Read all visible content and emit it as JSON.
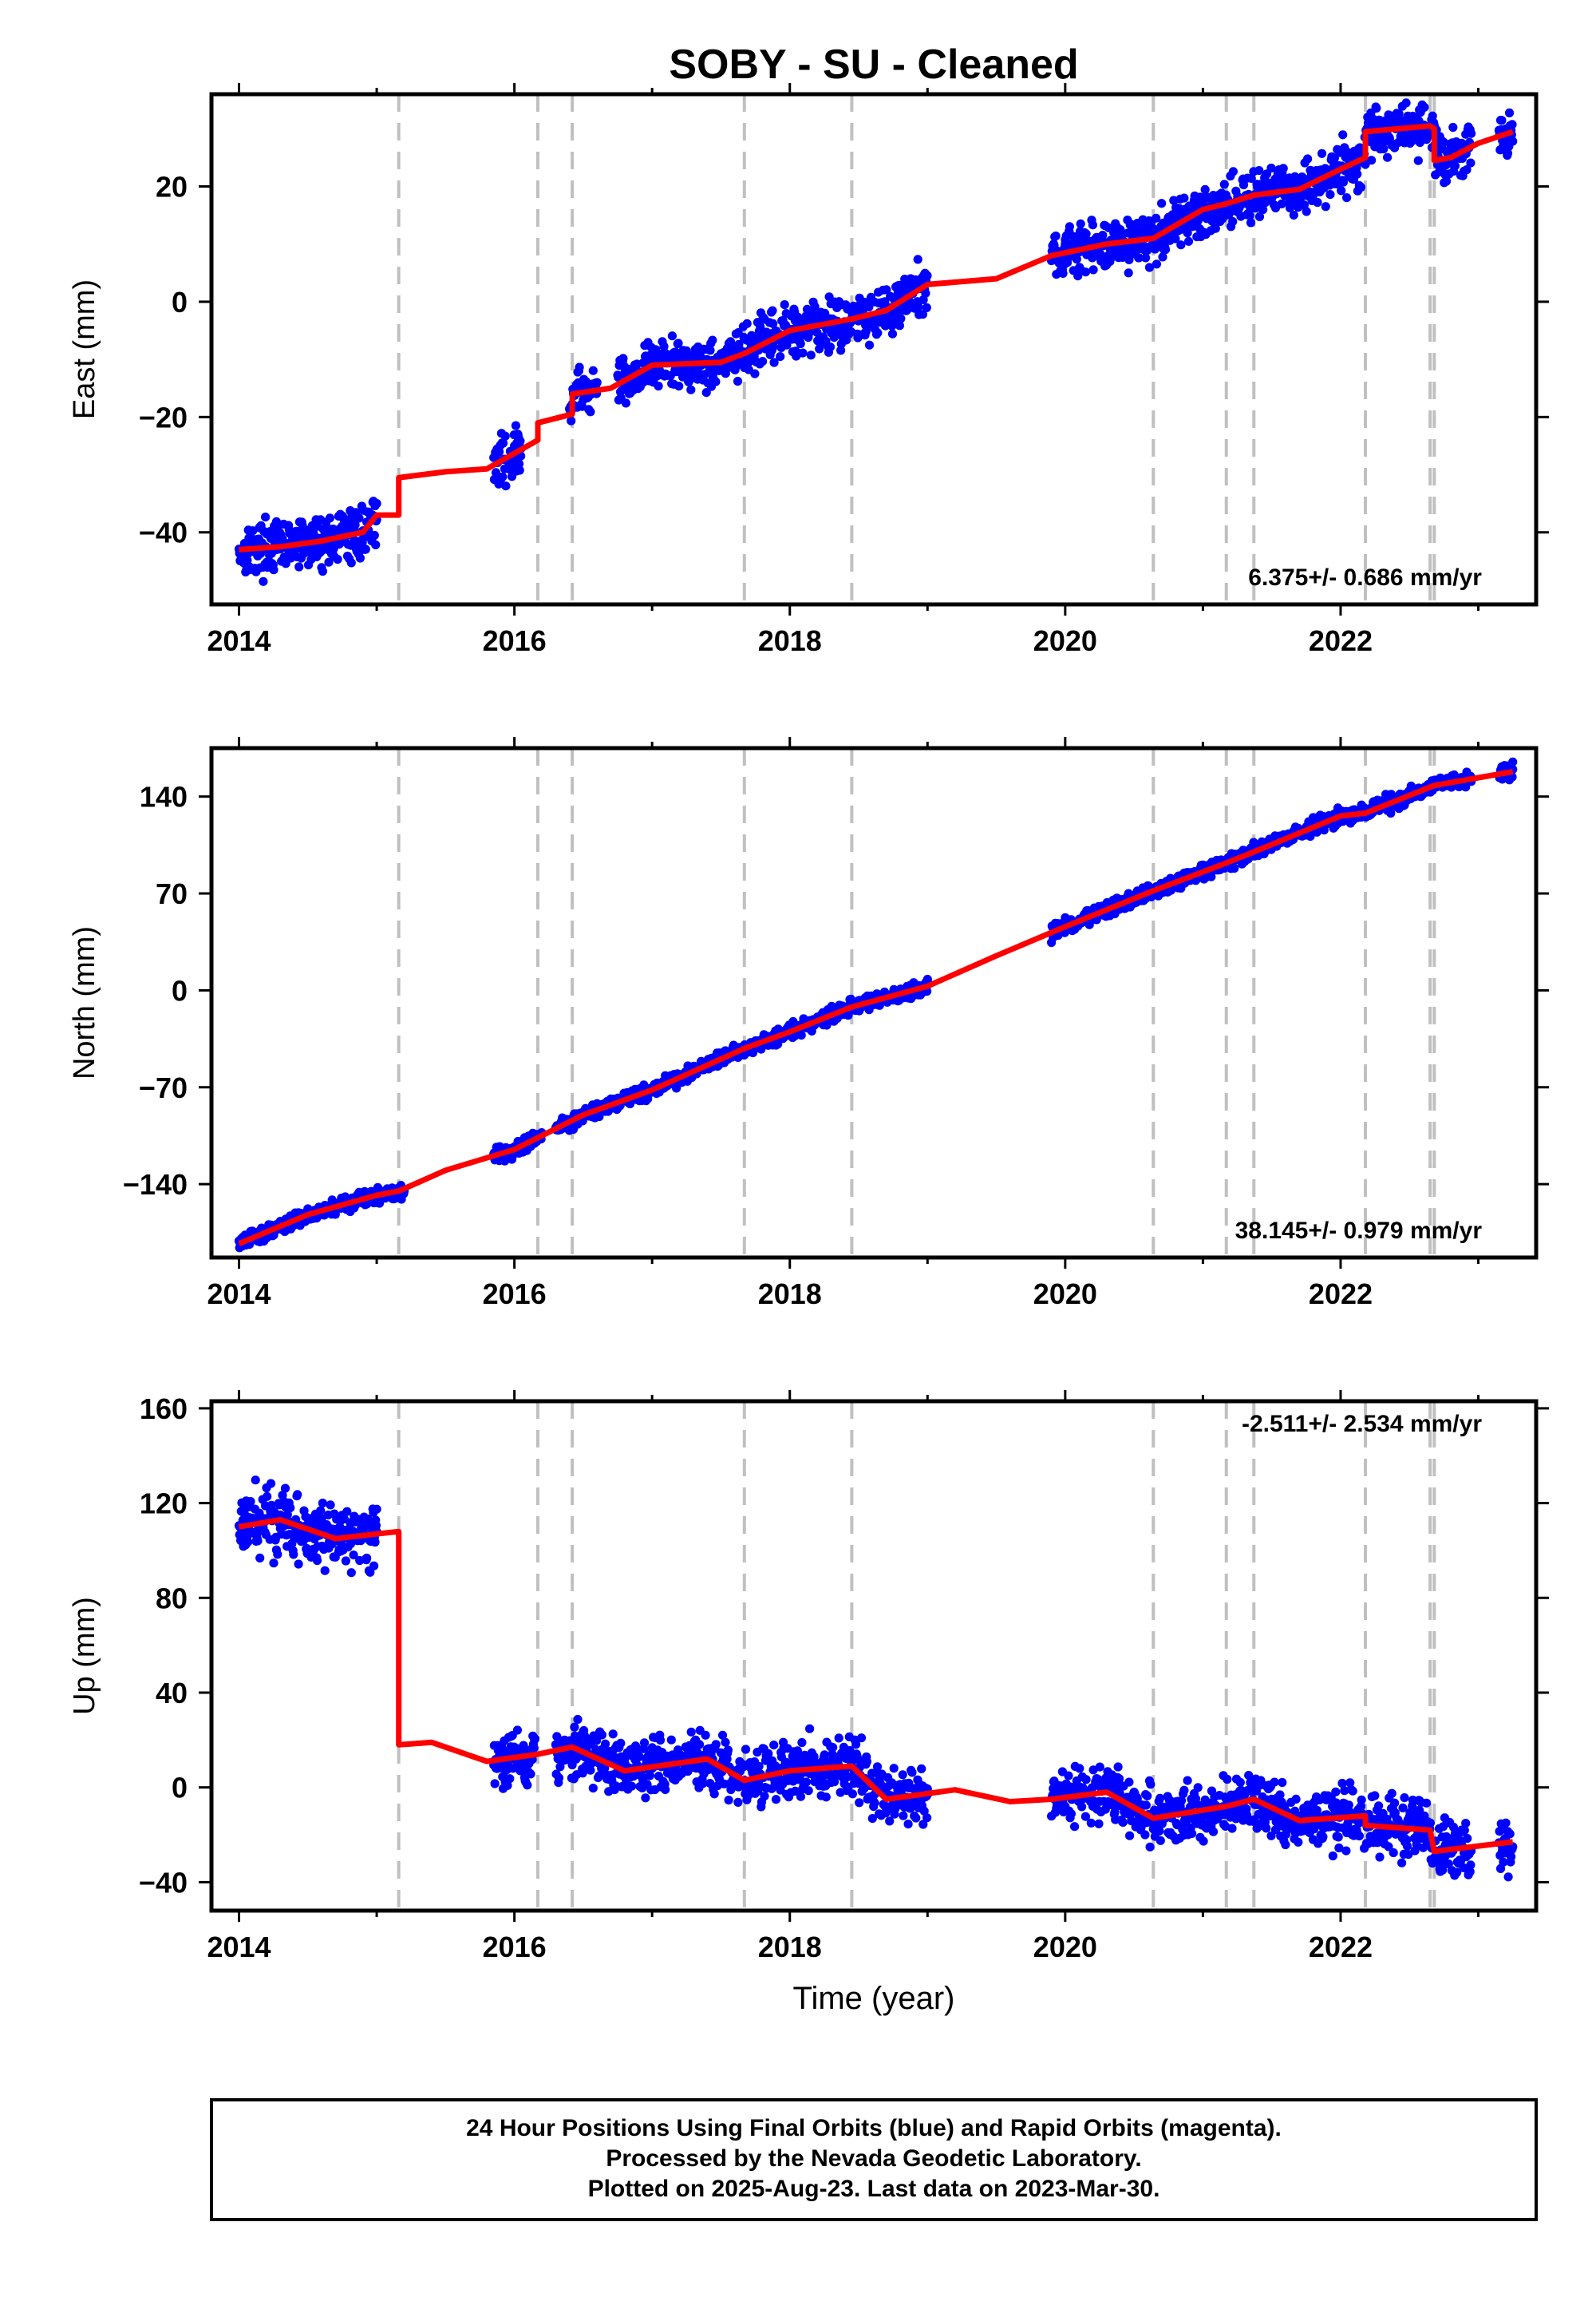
{
  "title": "SOBY  - SU - Cleaned",
  "colors": {
    "final_orbits": "#0000ff",
    "model": "#ff0000",
    "breaks": "#c0c0c0",
    "frame": "#000000"
  },
  "chart_data": [
    {
      "type": "scatter",
      "component": "east",
      "ylabel": "East (mm)",
      "xlabel": "",
      "xlim": [
        2013.8,
        2023.42
      ],
      "ylim": [
        -52.5,
        36
      ],
      "xticks": [
        "2014",
        "2016",
        "2018",
        "2020",
        "2022"
      ],
      "yticks": [
        "−40",
        "−20",
        "0",
        "20"
      ],
      "rate_text": "6.375+/- 0.686 mm/yr",
      "offset_epochs": [
        2015.16,
        2016.17,
        2016.42,
        2017.67,
        2018.45,
        2020.64,
        2021.17,
        2021.37,
        2022.18,
        2022.65,
        2022.68
      ],
      "data_segments": [
        [
          2014.0,
          2015.0
        ],
        [
          2015.85,
          2016.05
        ],
        [
          2016.4,
          2016.6
        ],
        [
          2016.75,
          2019.0
        ],
        [
          2019.9,
          2022.95
        ],
        [
          2023.15,
          2023.25
        ]
      ],
      "model_curve": [
        [
          2014.0,
          -43
        ],
        [
          2014.3,
          -42.5
        ],
        [
          2014.6,
          -41.5
        ],
        [
          2014.9,
          -40
        ],
        [
          2015.0,
          -37
        ],
        [
          2015.16,
          -37
        ],
        [
          2015.16,
          -30.5
        ],
        [
          2015.5,
          -29.5
        ],
        [
          2015.8,
          -29
        ],
        [
          2016.17,
          -24
        ],
        [
          2016.17,
          -21
        ],
        [
          2016.42,
          -19.5
        ],
        [
          2016.42,
          -16
        ],
        [
          2016.7,
          -15
        ],
        [
          2017.0,
          -11
        ],
        [
          2017.5,
          -10.5
        ],
        [
          2017.67,
          -9
        ],
        [
          2018.0,
          -5
        ],
        [
          2018.45,
          -3
        ],
        [
          2018.7,
          -1.5
        ],
        [
          2019.0,
          3
        ],
        [
          2019.5,
          4
        ],
        [
          2019.9,
          8
        ],
        [
          2020.3,
          10
        ],
        [
          2020.64,
          11
        ],
        [
          2021.0,
          16
        ],
        [
          2021.17,
          17
        ],
        [
          2021.37,
          18.5
        ],
        [
          2021.7,
          19.5
        ],
        [
          2022.0,
          23
        ],
        [
          2022.18,
          25
        ],
        [
          2022.18,
          29.5
        ],
        [
          2022.65,
          30.5
        ],
        [
          2022.68,
          30
        ],
        [
          2022.68,
          24.5
        ],
        [
          2022.8,
          25
        ],
        [
          2023.0,
          27.5
        ],
        [
          2023.25,
          29.5
        ]
      ],
      "samples": [
        [
          2014.05,
          -43
        ],
        [
          2014.2,
          -40
        ],
        [
          2014.5,
          -42
        ],
        [
          2014.8,
          -38
        ],
        [
          2015.0,
          -35
        ],
        [
          2016.0,
          -25
        ],
        [
          2016.5,
          -17
        ],
        [
          2017.0,
          -12
        ],
        [
          2017.5,
          -9
        ],
        [
          2018.0,
          -5
        ],
        [
          2018.5,
          -3
        ],
        [
          2018.9,
          2
        ],
        [
          2020.0,
          10
        ],
        [
          2020.5,
          11
        ],
        [
          2021.0,
          17
        ],
        [
          2021.5,
          18
        ],
        [
          2022.0,
          23
        ],
        [
          2022.4,
          30
        ],
        [
          2022.8,
          25
        ],
        [
          2023.2,
          30
        ]
      ]
    },
    {
      "type": "scatter",
      "component": "north",
      "ylabel": "North (mm)",
      "xlabel": "",
      "xlim": [
        2013.8,
        2023.42
      ],
      "ylim": [
        -193,
        175
      ],
      "xticks": [
        "2014",
        "2016",
        "2018",
        "2020",
        "2022"
      ],
      "yticks": [
        "−140",
        "−70",
        "0",
        "70",
        "140"
      ],
      "rate_text": "38.145+/- 0.979 mm/yr",
      "offset_epochs": [
        2015.16,
        2016.17,
        2016.42,
        2017.67,
        2018.45,
        2020.64,
        2021.17,
        2021.37,
        2022.18,
        2022.65,
        2022.68
      ],
      "data_segments": [
        [
          2014.0,
          2015.2
        ],
        [
          2015.85,
          2016.2
        ],
        [
          2016.3,
          2019.0
        ],
        [
          2019.9,
          2022.95
        ],
        [
          2023.15,
          2023.25
        ]
      ],
      "model_curve": [
        [
          2014.0,
          -183
        ],
        [
          2014.5,
          -162
        ],
        [
          2015.0,
          -148
        ],
        [
          2015.16,
          -145
        ],
        [
          2015.5,
          -130
        ],
        [
          2016.0,
          -115
        ],
        [
          2016.5,
          -90
        ],
        [
          2017.0,
          -72
        ],
        [
          2017.67,
          -42
        ],
        [
          2018.0,
          -30
        ],
        [
          2018.45,
          -12
        ],
        [
          2019.0,
          3
        ],
        [
          2019.5,
          25
        ],
        [
          2020.0,
          46
        ],
        [
          2020.64,
          72
        ],
        [
          2021.17,
          92
        ],
        [
          2021.37,
          100
        ],
        [
          2022.0,
          126
        ],
        [
          2022.18,
          128
        ],
        [
          2022.68,
          148
        ],
        [
          2023.25,
          158
        ]
      ],
      "samples": [
        [
          2014.05,
          -184
        ],
        [
          2014.5,
          -162
        ],
        [
          2015.0,
          -147
        ],
        [
          2016.0,
          -113
        ],
        [
          2016.5,
          -88
        ],
        [
          2017.0,
          -72
        ],
        [
          2017.5,
          -50
        ],
        [
          2018.0,
          -30
        ],
        [
          2018.5,
          -10
        ],
        [
          2019.0,
          8
        ],
        [
          2020.0,
          48
        ],
        [
          2020.6,
          72
        ],
        [
          2021.2,
          93
        ],
        [
          2021.8,
          118
        ],
        [
          2022.4,
          133
        ],
        [
          2022.9,
          148
        ],
        [
          2023.25,
          165
        ]
      ]
    },
    {
      "type": "scatter",
      "component": "up",
      "ylabel": "Up (mm)",
      "xlabel": "Time (year)",
      "xlim": [
        2013.8,
        2023.42
      ],
      "ylim": [
        -52,
        163
      ],
      "xticks": [
        "2014",
        "2016",
        "2018",
        "2020",
        "2022"
      ],
      "yticks": [
        "−40",
        "0",
        "40",
        "80",
        "120",
        "160"
      ],
      "rate_text": "-2.511+/- 2.534 mm/yr",
      "offset_epochs": [
        2015.16,
        2016.17,
        2016.42,
        2017.67,
        2018.45,
        2020.64,
        2021.17,
        2021.37,
        2022.18,
        2022.65,
        2022.68
      ],
      "data_segments": [
        [
          2014.0,
          2015.0
        ],
        [
          2015.85,
          2016.15
        ],
        [
          2016.3,
          2019.0
        ],
        [
          2019.9,
          2022.95
        ],
        [
          2023.15,
          2023.25
        ]
      ],
      "model_curve": [
        [
          2014.0,
          110
        ],
        [
          2014.3,
          113
        ],
        [
          2014.7,
          105
        ],
        [
          2015.0,
          107
        ],
        [
          2015.16,
          108
        ],
        [
          2015.16,
          18
        ],
        [
          2015.4,
          19
        ],
        [
          2015.8,
          11
        ],
        [
          2016.17,
          14
        ],
        [
          2016.42,
          17
        ],
        [
          2016.8,
          7
        ],
        [
          2017.4,
          12
        ],
        [
          2017.67,
          3
        ],
        [
          2018.0,
          7
        ],
        [
          2018.45,
          9
        ],
        [
          2018.7,
          -5
        ],
        [
          2019.2,
          -1
        ],
        [
          2019.6,
          -6
        ],
        [
          2019.9,
          -5
        ],
        [
          2020.3,
          -2
        ],
        [
          2020.64,
          -13
        ],
        [
          2021.17,
          -8
        ],
        [
          2021.37,
          -5
        ],
        [
          2021.7,
          -14
        ],
        [
          2022.18,
          -12
        ],
        [
          2022.18,
          -16
        ],
        [
          2022.65,
          -18
        ],
        [
          2022.68,
          -27
        ],
        [
          2023.25,
          -23
        ]
      ],
      "samples": [
        [
          2014.05,
          112
        ],
        [
          2014.3,
          115
        ],
        [
          2014.7,
          104
        ],
        [
          2015.0,
          108
        ],
        [
          2016.0,
          12
        ],
        [
          2016.5,
          17
        ],
        [
          2017.0,
          8
        ],
        [
          2017.5,
          10
        ],
        [
          2018.0,
          6
        ],
        [
          2018.5,
          2
        ],
        [
          2019.0,
          -3
        ],
        [
          2020.0,
          -4
        ],
        [
          2020.5,
          -2
        ],
        [
          2021.0,
          -10
        ],
        [
          2021.5,
          -8
        ],
        [
          2022.0,
          -12
        ],
        [
          2022.5,
          -17
        ],
        [
          2022.9,
          -27
        ],
        [
          2023.2,
          -15
        ]
      ]
    }
  ],
  "footer": {
    "line1": "24 Hour Positions Using Final Orbits (blue) and Rapid Orbits (magenta).",
    "line2": "Processed by the Nevada Geodetic Laboratory.",
    "line3": "Plotted on 2025-Aug-23. Last data on 2023-Mar-30."
  }
}
